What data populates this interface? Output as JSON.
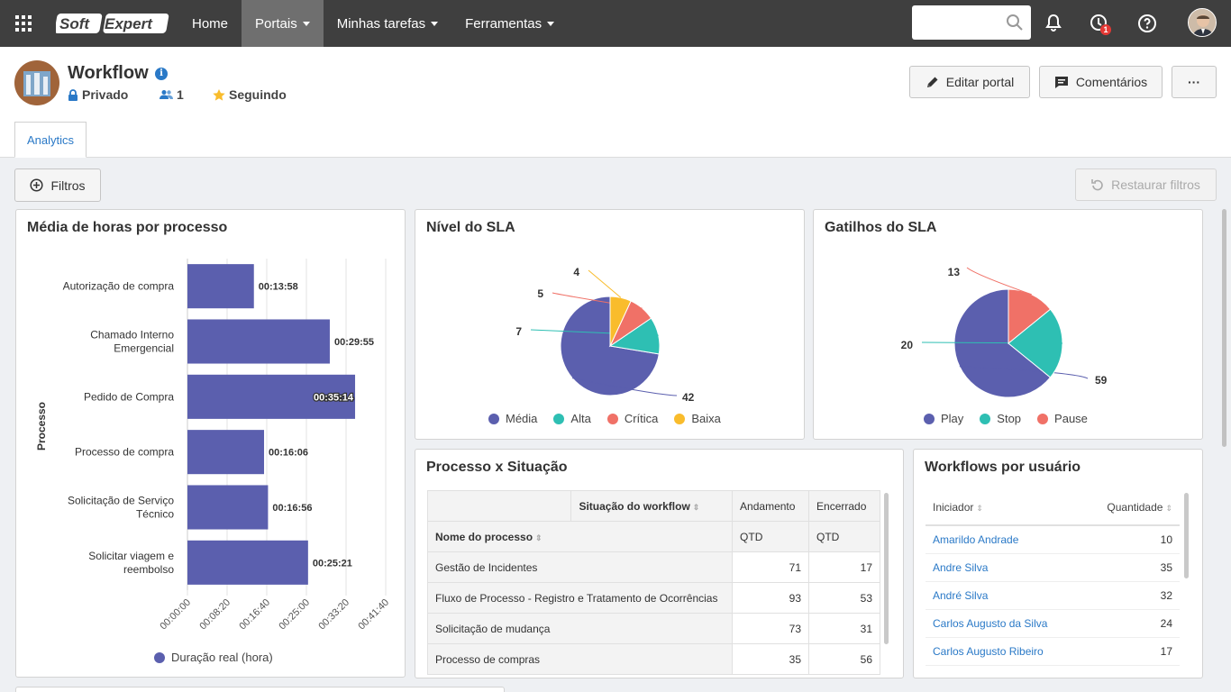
{
  "topbar": {
    "logo_text_a": "Soft",
    "logo_text_b": "Expert",
    "nav": [
      {
        "label": "Home"
      },
      {
        "label": "Portais"
      },
      {
        "label": "Minhas tarefas"
      },
      {
        "label": "Ferramentas"
      }
    ],
    "search_placeholder": "",
    "notification_badge": "1"
  },
  "header": {
    "title": "Workflow",
    "privacy": "Privado",
    "members": "1",
    "following": "Seguindo",
    "edit_button": "Editar portal",
    "comments_button": "Comentários",
    "more_button": "···",
    "tab": "Analytics"
  },
  "toolbar": {
    "filters_button": "Filtros",
    "restore_button": "Restaurar filtros"
  },
  "panels": {
    "hours": {
      "title": "Média de horas por processo",
      "y_axis": "Processo",
      "legend": "Duração real (hora)"
    },
    "sla": {
      "title": "Nível do SLA"
    },
    "triggers": {
      "title": "Gatilhos do SLA"
    },
    "process_status": {
      "title": "Processo x Situação"
    },
    "user_workflows": {
      "title": "Workflows por usuário"
    }
  },
  "chart_data": [
    {
      "type": "bar",
      "orientation": "horizontal",
      "title": "Média de horas por processo",
      "ylabel": "Processo",
      "categories": [
        "Autorização de compra",
        "Chamado Interno Emergencial",
        "Pedido de Compra",
        "Processo de compra",
        "Solicitação de Serviço Técnico",
        "Solicitar viagem e reembolso"
      ],
      "category_lines": [
        [
          "Autorização de compra"
        ],
        [
          "Chamado Interno",
          "Emergencial"
        ],
        [
          "Pedido de Compra"
        ],
        [
          "Processo de compra"
        ],
        [
          "Solicitação de Serviço",
          "Técnico"
        ],
        [
          "Solicitar viagem e",
          "reembolso"
        ]
      ],
      "series": [
        {
          "name": "Duração real (hora)",
          "values_seconds": [
            838,
            1795,
            2114,
            966,
            1016,
            1521
          ]
        }
      ],
      "value_labels": [
        "00:13:58",
        "00:29:55",
        "00:35:14",
        "00:16:06",
        "00:16:56",
        "00:25:21"
      ],
      "x_ticks": [
        "00:00:00",
        "00:08:20",
        "00:16:40",
        "00:25:00",
        "00:33:20",
        "00:41:40"
      ],
      "xlim_seconds": [
        0,
        2500
      ],
      "colors": {
        "bar": "#5b5fae"
      }
    },
    {
      "type": "pie",
      "title": "Nível do SLA",
      "labels": [
        "Média",
        "Alta",
        "Crítica",
        "Baixa"
      ],
      "values": [
        42,
        7,
        5,
        4
      ],
      "colors": [
        "#5b5fae",
        "#2ebfb3",
        "#f07167",
        "#f9bc2c"
      ]
    },
    {
      "type": "pie",
      "title": "Gatilhos do SLA",
      "labels": [
        "Play",
        "Stop",
        "Pause"
      ],
      "values": [
        59,
        20,
        13
      ],
      "colors": [
        "#5b5fae",
        "#2ebfb3",
        "#f07167"
      ]
    }
  ],
  "process_table": {
    "group_header": "Situação do workflow",
    "col_andamento": "Andamento",
    "col_encerrado": "Encerrado",
    "row_header": "Nome do processo",
    "qtd": "QTD",
    "rows": [
      {
        "name": "Gestão de Incidentes",
        "andamento": "71",
        "encerrado": "17"
      },
      {
        "name": "Fluxo de Processo - Registro e Tratamento de Ocorrências",
        "andamento": "93",
        "encerrado": "53"
      },
      {
        "name": "Solicitação de mudança",
        "andamento": "73",
        "encerrado": "31"
      },
      {
        "name": "Processo de compras",
        "andamento": "35",
        "encerrado": "56"
      }
    ]
  },
  "user_table": {
    "col_initiator": "Iniciador",
    "col_quantity": "Quantidade",
    "rows": [
      {
        "name": "Amarildo Andrade",
        "qty": "10"
      },
      {
        "name": "Andre Silva",
        "qty": "35"
      },
      {
        "name": "André Silva",
        "qty": "32"
      },
      {
        "name": "Carlos Augusto da Silva",
        "qty": "24"
      },
      {
        "name": "Carlos Augusto Ribeiro",
        "qty": "17"
      }
    ]
  }
}
